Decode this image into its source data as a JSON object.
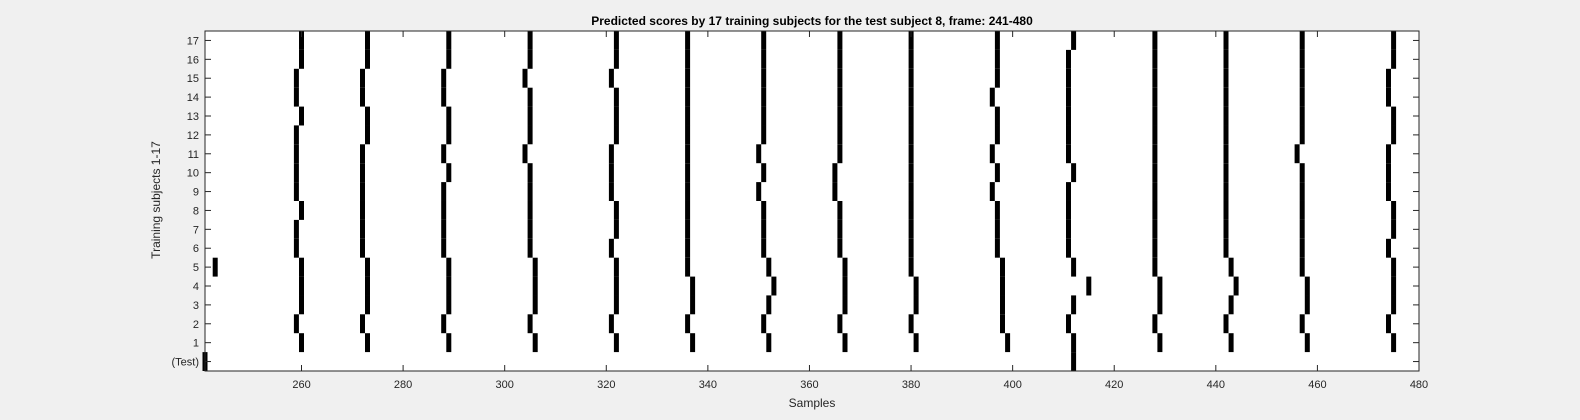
{
  "colors": {
    "figure_bg": "#f0f0f0",
    "axes_bg": "#ffffff",
    "mark": "#000000",
    "axis": "#262626"
  },
  "chart_data": {
    "type": "heatmap",
    "title": "Predicted scores by 17 training subjects for the test subject 8, frame: 241-480",
    "xlabel": "Samples",
    "ylabel": "Training subjects 1-17",
    "xlim": [
      241,
      480
    ],
    "x_ticks": [
      260,
      280,
      300,
      320,
      340,
      360,
      380,
      400,
      420,
      440,
      460,
      480
    ],
    "y_tick_labels": [
      "(Test)",
      "1",
      "2",
      "3",
      "4",
      "5",
      "6",
      "7",
      "8",
      "9",
      "10",
      "11",
      "12",
      "13",
      "14",
      "15",
      "16",
      "17"
    ],
    "grid": false,
    "marks_per_row": [
      {
        "row": "(Test)",
        "x": [
          241,
          412
        ]
      },
      {
        "row": "1",
        "x": [
          260,
          273,
          289,
          306,
          322,
          337,
          352,
          367,
          381,
          399,
          412,
          429,
          443,
          458,
          475
        ]
      },
      {
        "row": "2",
        "x": [
          259,
          272,
          288,
          305,
          321,
          336,
          351,
          366,
          380,
          398,
          411,
          428,
          442,
          457,
          474
        ]
      },
      {
        "row": "3",
        "x": [
          260,
          273,
          289,
          306,
          322,
          337,
          352,
          367,
          381,
          398,
          412,
          429,
          443,
          458,
          475
        ]
      },
      {
        "row": "4",
        "x": [
          260,
          273,
          289,
          306,
          322,
          337,
          353,
          367,
          381,
          398,
          415,
          429,
          444,
          458,
          475
        ]
      },
      {
        "row": "5",
        "x": [
          243,
          260,
          273,
          289,
          306,
          322,
          336,
          352,
          367,
          380,
          398,
          412,
          428,
          443,
          457,
          475
        ]
      },
      {
        "row": "6",
        "x": [
          259,
          272,
          288,
          305,
          321,
          336,
          351,
          366,
          380,
          397,
          411,
          428,
          442,
          457,
          474
        ]
      },
      {
        "row": "7",
        "x": [
          259,
          272,
          288,
          305,
          322,
          336,
          351,
          366,
          380,
          397,
          411,
          428,
          442,
          457,
          475
        ]
      },
      {
        "row": "8",
        "x": [
          260,
          272,
          288,
          305,
          322,
          336,
          351,
          366,
          380,
          397,
          411,
          428,
          442,
          457,
          475
        ]
      },
      {
        "row": "9",
        "x": [
          259,
          272,
          288,
          305,
          321,
          336,
          350,
          365,
          380,
          396,
          411,
          428,
          442,
          457,
          474
        ]
      },
      {
        "row": "10",
        "x": [
          259,
          272,
          289,
          305,
          321,
          336,
          351,
          365,
          380,
          397,
          412,
          428,
          442,
          457,
          474
        ]
      },
      {
        "row": "11",
        "x": [
          259,
          272,
          288,
          304,
          321,
          336,
          350,
          366,
          380,
          396,
          411,
          428,
          442,
          456,
          474
        ]
      },
      {
        "row": "12",
        "x": [
          259,
          273,
          289,
          305,
          322,
          336,
          351,
          366,
          380,
          397,
          411,
          428,
          442,
          457,
          475
        ]
      },
      {
        "row": "13",
        "x": [
          260,
          273,
          289,
          305,
          322,
          336,
          351,
          366,
          380,
          397,
          411,
          428,
          442,
          457,
          475
        ]
      },
      {
        "row": "14",
        "x": [
          259,
          272,
          288,
          305,
          322,
          336,
          351,
          366,
          380,
          396,
          411,
          428,
          442,
          457,
          474
        ]
      },
      {
        "row": "15",
        "x": [
          259,
          272,
          288,
          304,
          321,
          336,
          351,
          366,
          380,
          397,
          411,
          428,
          442,
          457,
          474
        ]
      },
      {
        "row": "16",
        "x": [
          260,
          273,
          289,
          305,
          322,
          336,
          351,
          366,
          380,
          397,
          411,
          428,
          442,
          457,
          475
        ]
      },
      {
        "row": "17",
        "x": [
          260,
          273,
          289,
          305,
          322,
          336,
          351,
          366,
          380,
          397,
          412,
          428,
          442,
          457,
          475
        ]
      }
    ]
  }
}
